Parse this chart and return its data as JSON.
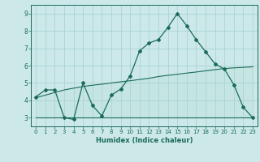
{
  "xlabel": "Humidex (Indice chaleur)",
  "x": [
    0,
    1,
    2,
    3,
    4,
    5,
    6,
    7,
    8,
    9,
    10,
    11,
    12,
    13,
    14,
    15,
    16,
    17,
    18,
    19,
    20,
    21,
    22,
    23
  ],
  "y_main": [
    4.2,
    4.6,
    4.6,
    3.0,
    2.9,
    5.0,
    3.7,
    3.1,
    4.3,
    4.65,
    5.4,
    6.85,
    7.3,
    7.5,
    8.2,
    9.0,
    8.3,
    7.5,
    6.8,
    6.1,
    5.8,
    4.9,
    3.6,
    3.0
  ],
  "y_upper": [
    4.15,
    4.3,
    4.45,
    4.6,
    4.7,
    4.8,
    4.87,
    4.93,
    5.0,
    5.07,
    5.13,
    5.2,
    5.27,
    5.37,
    5.44,
    5.5,
    5.57,
    5.63,
    5.7,
    5.77,
    5.83,
    5.87,
    5.9,
    5.93
  ],
  "y_lower": [
    3.0,
    3.0,
    3.0,
    3.0,
    3.0,
    3.0,
    3.0,
    3.0,
    3.0,
    3.0,
    3.0,
    3.0,
    3.0,
    3.0,
    3.0,
    3.0,
    3.0,
    3.0,
    3.0,
    3.0,
    3.0,
    3.0,
    3.0,
    3.0
  ],
  "line_color": "#1a6b5a",
  "fill_color": "#c2e4e0",
  "bg_color": "#cce8e8",
  "grid_color": "#aad4d4",
  "ylim": [
    2.5,
    9.5
  ],
  "xlim": [
    -0.5,
    23.5
  ],
  "yticks": [
    3,
    4,
    5,
    6,
    7,
    8,
    9
  ]
}
